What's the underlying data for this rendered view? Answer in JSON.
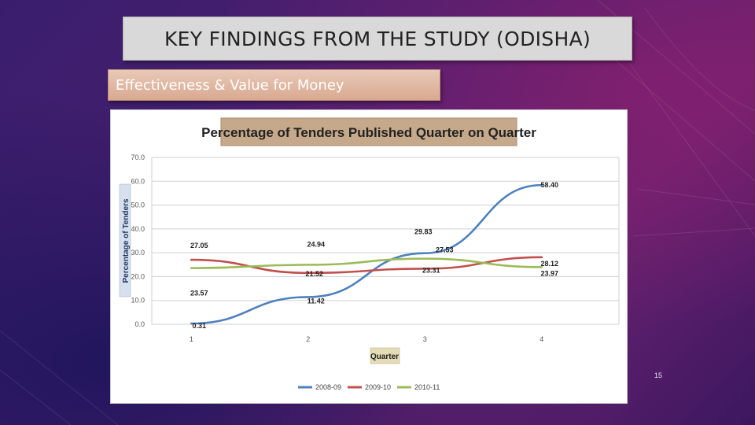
{
  "slide": {
    "title": "KEY FINDINGS FROM THE STUDY (ODISHA)",
    "subtitle": "Effectiveness & Value for Money",
    "page_number": "15"
  },
  "colors": {
    "series_2008_09": "#4f81bd",
    "series_2009_10": "#c0504d",
    "series_2010_11": "#9bbb59",
    "chart_title_bg": "#c6a98a"
  },
  "chart_data": {
    "type": "line",
    "title": "Percentage of Tenders Published Quarter on Quarter",
    "xlabel": "Quarter",
    "ylabel": "Percentage of Tenders",
    "x": [
      1,
      2,
      3,
      4
    ],
    "x_tick_labels": [
      "1",
      "2",
      "3",
      "4"
    ],
    "ylim": [
      0,
      70
    ],
    "y_ticks": [
      "0.0",
      "10.0",
      "20.0",
      "30.0",
      "40.0",
      "50.0",
      "60.0",
      "70.0"
    ],
    "grid": true,
    "legend_position": "bottom",
    "series": [
      {
        "name": "2008-09",
        "values": [
          0.31,
          11.42,
          29.83,
          58.4
        ],
        "labels": [
          "0.31",
          "11.42",
          "29.83",
          "58.40"
        ]
      },
      {
        "name": "2009-10",
        "values": [
          27.05,
          21.52,
          23.31,
          28.12
        ],
        "labels": [
          "27.05",
          "21.52",
          "23.31",
          "28.12"
        ]
      },
      {
        "name": "2010-11",
        "values": [
          23.57,
          24.94,
          27.53,
          23.97
        ],
        "labels": [
          "23.57",
          "24.94",
          "27.53",
          "23.97"
        ]
      }
    ]
  }
}
